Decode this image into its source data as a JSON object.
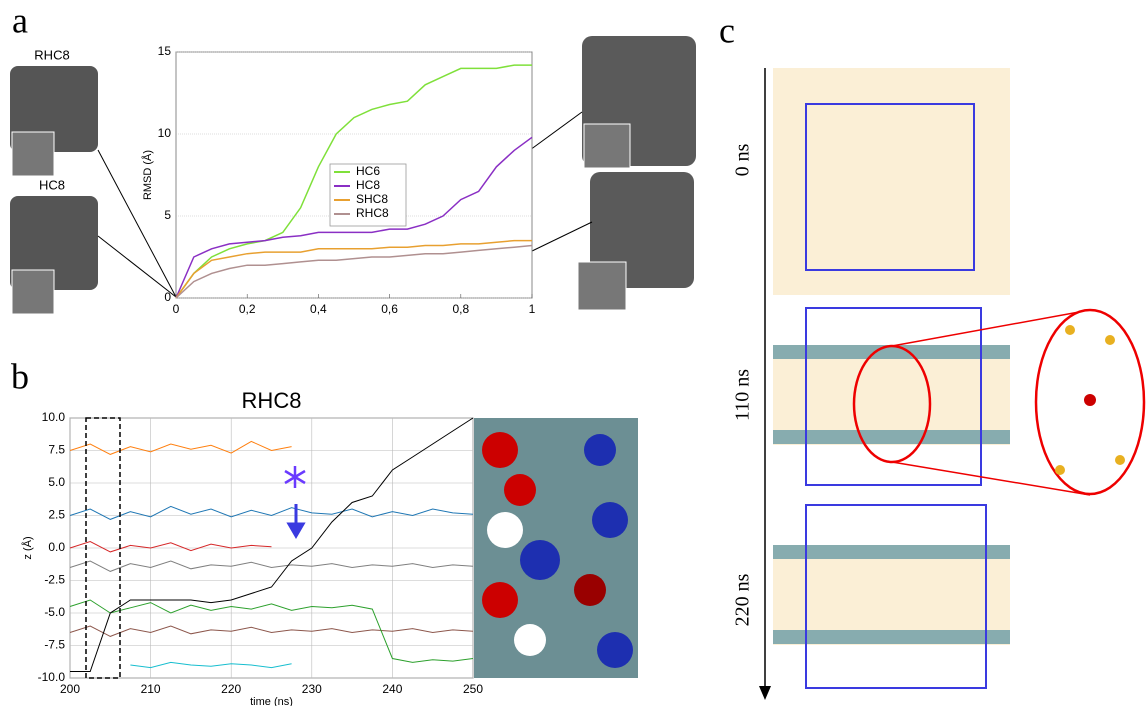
{
  "chart_data": [
    {
      "type": "line",
      "ylabel": "RMSD (Å)",
      "x": [
        0,
        0.05,
        0.1,
        0.15,
        0.2,
        0.25,
        0.3,
        0.35,
        0.4,
        0.45,
        0.5,
        0.55,
        0.6,
        0.65,
        0.7,
        0.75,
        0.8,
        0.85,
        0.9,
        0.95,
        1
      ],
      "series": [
        {
          "name": "HC6",
          "color": "#7fe03a",
          "values": [
            0,
            1.5,
            2.5,
            3,
            3.3,
            3.5,
            4,
            5.5,
            8,
            10,
            11,
            11.5,
            11.8,
            12,
            13,
            13.5,
            14,
            14,
            14,
            14.2,
            14.2
          ]
        },
        {
          "name": "HC8",
          "color": "#8a2fc4",
          "values": [
            0,
            2.5,
            3,
            3.3,
            3.4,
            3.5,
            3.7,
            3.8,
            4,
            4,
            4,
            4,
            4.2,
            4.2,
            4.5,
            5,
            6,
            6.5,
            8,
            9,
            9.8
          ]
        },
        {
          "name": "SHC8",
          "color": "#e8a030",
          "values": [
            0,
            1.5,
            2.3,
            2.5,
            2.7,
            2.8,
            2.8,
            2.8,
            3,
            3,
            3,
            3,
            3.1,
            3.1,
            3.2,
            3.2,
            3.3,
            3.3,
            3.4,
            3.5,
            3.5
          ]
        },
        {
          "name": "RHC8",
          "color": "#b09090",
          "values": [
            0,
            1,
            1.5,
            1.8,
            2,
            2,
            2.1,
            2.2,
            2.3,
            2.3,
            2.4,
            2.5,
            2.5,
            2.6,
            2.7,
            2.7,
            2.8,
            2.9,
            3,
            3.1,
            3.2
          ]
        }
      ],
      "xlim": [
        0,
        1
      ],
      "xticks": [
        0,
        {
          "value": 0.2,
          "label": "0,2"
        },
        {
          "value": 0.4,
          "label": "0,4"
        },
        {
          "value": 0.6,
          "label": "0,6"
        },
        {
          "value": 0.8,
          "label": "0,8"
        },
        1
      ],
      "ylim": [
        0,
        15
      ],
      "yticks": [
        0,
        5,
        10,
        15
      ],
      "grid": true,
      "xgrid": false
    },
    {
      "type": "line",
      "title": "RHC8",
      "xlabel": "time (ns)",
      "ylabel": "z (Å)",
      "x": [
        200,
        202.5,
        205,
        207.5,
        210,
        212.5,
        215,
        217.5,
        220,
        222.5,
        225,
        227.5,
        230,
        232.5,
        235,
        237.5,
        240,
        242.5,
        245,
        247.5,
        250
      ],
      "series": [
        {
          "color": "#ff7f0e",
          "values": [
            7.5,
            8,
            7.2,
            7.8,
            7.4,
            8,
            7.6,
            7.9,
            7.3,
            8.2,
            7.5,
            7.8,
            null,
            null,
            null,
            null,
            null,
            null,
            null,
            null,
            null
          ]
        },
        {
          "color": "#1f77b4",
          "values": [
            2.5,
            3,
            2.2,
            2.8,
            2.4,
            3.2,
            2.6,
            3,
            2.4,
            2.9,
            2.5,
            3.1,
            2.7,
            2.6,
            3,
            2.4,
            2.8,
            2.5,
            3,
            2.7,
            2.6
          ]
        },
        {
          "color": "#d62728",
          "values": [
            0,
            0.5,
            -0.3,
            0.2,
            0,
            0.4,
            -0.2,
            0.3,
            0,
            0.2,
            0.1,
            null,
            null,
            null,
            null,
            null,
            null,
            null,
            null,
            null,
            null
          ]
        },
        {
          "color": "#7f7f7f",
          "values": [
            -1.5,
            -1,
            -1.8,
            -1.2,
            -1.5,
            -1,
            -1.6,
            -1.3,
            -1.4,
            -1.1,
            -1.5,
            -1.3,
            -1.4,
            -1.2,
            -1.5,
            -1.3,
            -1.4,
            -1.2,
            -1.5,
            -1.3,
            -1.4
          ]
        },
        {
          "color": "#8c564b",
          "values": [
            -6.5,
            -6,
            -6.8,
            -6.2,
            -6.5,
            -6,
            -6.6,
            -6.3,
            -6.4,
            -6.1,
            -6.5,
            -6.3,
            -6.4,
            -6.2,
            -6.5,
            -6.3,
            -6.4,
            -6.2,
            -6.5,
            -6.3,
            -6.4
          ]
        },
        {
          "color": "#17becf",
          "values": [
            null,
            null,
            null,
            -9,
            -9.2,
            -8.8,
            -9,
            -9.1,
            -8.9,
            -9,
            -9.2,
            -8.9,
            null,
            null,
            null,
            null,
            null,
            null,
            null,
            null,
            null
          ]
        },
        {
          "color": "#2ca02c",
          "values": [
            -4.5,
            -4,
            -5,
            -4.6,
            -4.2,
            -5,
            -4.4,
            -4.8,
            -4.5,
            -4.7,
            -4.3,
            -4.8,
            -4.5,
            -4.6,
            -4.4,
            -4.7,
            -8.5,
            -8.8,
            -8.6,
            -8.7,
            -8.5
          ]
        },
        {
          "color": "#000000",
          "values": [
            -9.5,
            -9.5,
            -5,
            -4,
            -4,
            -4,
            -4,
            -4.2,
            -4,
            -3.5,
            -3,
            -1,
            0,
            2,
            3.5,
            4,
            6,
            7,
            8,
            9,
            10
          ]
        }
      ],
      "xlim": [
        200,
        250
      ],
      "xticks": [
        200,
        210,
        220,
        230,
        240,
        250
      ],
      "ylim": [
        -10,
        10
      ],
      "yticks": [
        {
          "value": 10,
          "label": "10.0"
        },
        7.5,
        {
          "value": 5,
          "label": "5.0"
        },
        2.5,
        {
          "value": 0,
          "label": "0.0"
        },
        -2.5,
        {
          "value": -5,
          "label": "-5.0"
        },
        -7.5,
        {
          "value": -10,
          "label": "-10.0"
        }
      ],
      "grid": true,
      "xgrid": true
    }
  ],
  "figure": {
    "panel_labels": [
      "a",
      "b",
      "c"
    ],
    "structure_labels": [
      "RHC8",
      "HC8"
    ],
    "time_labels": [
      "0 ns",
      "110 ns",
      "220 ns"
    ]
  }
}
